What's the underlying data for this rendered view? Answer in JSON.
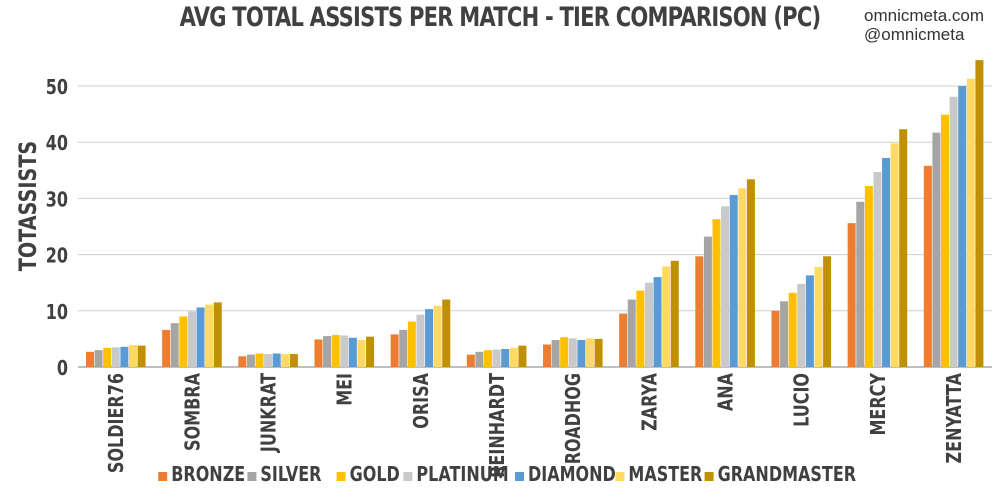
{
  "title": "AVG TOTAL ASSISTS PER MATCH - TIER COMPARISON (PC)",
  "credit": {
    "site": "omnicmeta.com",
    "handle": "@omnicmeta"
  },
  "colors": {
    "BRONZE": "#ED7D31",
    "SILVER": "#A5A5A5",
    "GOLD": "#FFC000",
    "PLATINUM": "#C9C9C9",
    "DIAMOND": "#5B9BD5",
    "MASTER": "#FFD966",
    "GRANDMASTER": "#BF9000"
  },
  "chart_data": {
    "type": "bar",
    "ylabel": "TOTASSISTS",
    "xlabel": "",
    "ylim": [
      0,
      55
    ],
    "yticks": [
      0,
      10,
      20,
      30,
      40,
      50
    ],
    "grid": true,
    "legend": "bottom",
    "categories": [
      "SOLDIER76",
      "SOMBRA",
      "JUNKRAT",
      "MEI",
      "ORISA",
      "REINHARDT",
      "ROADHOG",
      "ZARYA",
      "ANA",
      "LUCIO",
      "MERCY",
      "ZENYATTA"
    ],
    "series": [
      {
        "name": "BRONZE",
        "values": [
          2.7,
          6.6,
          1.9,
          4.9,
          5.8,
          2.2,
          4.0,
          9.5,
          19.7,
          10.0,
          25.6,
          35.8
        ]
      },
      {
        "name": "SILVER",
        "values": [
          3.0,
          7.8,
          2.2,
          5.5,
          6.6,
          2.7,
          4.8,
          12.0,
          23.2,
          11.7,
          29.4,
          41.7
        ]
      },
      {
        "name": "GOLD",
        "values": [
          3.4,
          9.0,
          2.4,
          5.7,
          8.1,
          3.0,
          5.3,
          13.6,
          26.3,
          13.2,
          32.2,
          44.9
        ]
      },
      {
        "name": "PLATINUM",
        "values": [
          3.5,
          9.9,
          2.3,
          5.6,
          9.3,
          3.1,
          5.1,
          15.0,
          28.6,
          14.8,
          34.7,
          48.1
        ]
      },
      {
        "name": "DIAMOND",
        "values": [
          3.6,
          10.6,
          2.4,
          5.2,
          10.3,
          3.2,
          4.8,
          16.0,
          30.6,
          16.3,
          37.2,
          50.0
        ]
      },
      {
        "name": "MASTER",
        "values": [
          3.9,
          11.1,
          2.3,
          4.8,
          10.9,
          3.4,
          5.1,
          17.9,
          31.8,
          17.8,
          39.8,
          51.3
        ]
      },
      {
        "name": "GRANDMASTER",
        "values": [
          3.8,
          11.5,
          2.3,
          5.4,
          12.0,
          3.8,
          5.0,
          18.9,
          33.4,
          19.7,
          42.3,
          54.6
        ]
      }
    ]
  }
}
